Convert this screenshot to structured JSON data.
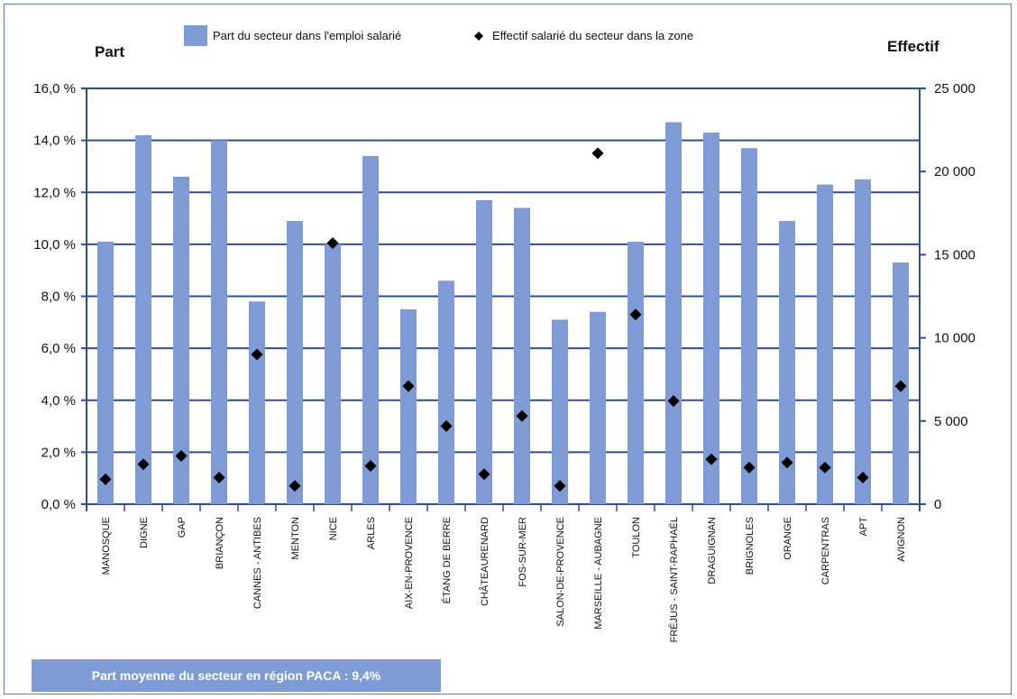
{
  "chart_data": {
    "type": "bar",
    "legend": {
      "placement": "top-center",
      "bar_label": "Part du secteur dans l'emploi salarié",
      "point_label": "Effectif salarié du secteur dans la zone"
    },
    "left_axis_title": "Part",
    "right_axis_title": "Effectif",
    "categories": [
      "MANOSQUE",
      "DIGNE",
      "GAP",
      "BRIANÇON",
      "CANNES - ANTIBES",
      "MENTON",
      "NICE",
      "ARLES",
      "AIX-EN-PROVENCE",
      "ÉTANG DE BERRE",
      "CHÂTEAURENARD",
      "FOS-SUR-MER",
      "SALON-DE-PROVENCE",
      "MARSEILLE - AUBAGNE",
      "TOULON",
      "FRÉJUS - SAINT-RAPHAËL",
      "DRAGUIGNAN",
      "BRIGNOLES",
      "ORANGE",
      "CARPENTRAS",
      "APT",
      "AVIGNON"
    ],
    "series": [
      {
        "name": "Part du secteur dans l'emploi salarié",
        "axis": "left",
        "values": [
          10.1,
          14.2,
          12.6,
          14.0,
          7.8,
          10.9,
          10.0,
          13.4,
          7.5,
          8.6,
          11.7,
          11.4,
          7.1,
          7.4,
          10.1,
          14.7,
          14.3,
          13.7,
          10.9,
          12.3,
          12.5,
          9.3
        ],
        "color": "#7f9bd6"
      },
      {
        "name": "Effectif salarié du secteur dans la zone",
        "axis": "right",
        "values": [
          1500,
          2400,
          2900,
          1600,
          9000,
          1100,
          15700,
          2300,
          7100,
          4700,
          1800,
          5300,
          1100,
          21100,
          11400,
          6200,
          2700,
          2200,
          2500,
          2200,
          1600,
          7100
        ],
        "color": "#000000"
      }
    ],
    "y_left": {
      "min": 0,
      "max": 16,
      "step": 2,
      "tick_labels": [
        "0,0 %",
        "2,0 %",
        "4,0 %",
        "6,0 %",
        "8,0 %",
        "10,0 %",
        "12,0 %",
        "14,0 %",
        "16,0 %"
      ]
    },
    "y_right": {
      "min": 0,
      "max": 25000,
      "step": 5000,
      "tick_labels": [
        "0",
        "5 000",
        "10 000",
        "15 000",
        "20 000",
        "25 000"
      ]
    },
    "grid": true,
    "grid_color": "#2e4f8f"
  },
  "note": "Part moyenne du secteur en région PACA :  9,4%"
}
